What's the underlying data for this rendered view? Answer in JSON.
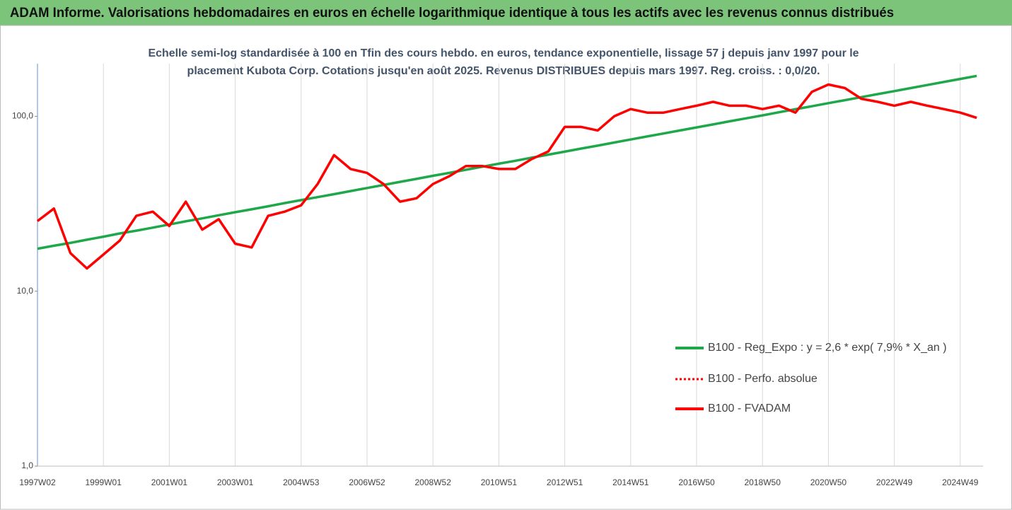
{
  "chart_data": {
    "type": "line",
    "title": "ADAM Informe. Valorisations hebdomadaires en euros en échelle logarithmique identique à tous les actifs avec les revenus connus distribués",
    "subtitle": [
      "Echelle semi-log standardisée à 100 en Tfin des cours hebdo. en euros, tendance exponentielle, lissage 57 j depuis janv 1997 pour le",
      "placement Kubota Corp. Cotations jusqu'en août 2025. Revenus DISTRIBUES depuis mars 1997. Reg. croiss. : 0,0/20."
    ],
    "categories": [
      "1997W02",
      null,
      null,
      null,
      "1999W01",
      null,
      null,
      null,
      "2001W01",
      null,
      null,
      null,
      "2003W01",
      null,
      null,
      null,
      "2004W53",
      null,
      null,
      null,
      "2006W52",
      null,
      null,
      null,
      "2008W52",
      null,
      null,
      null,
      "2010W51",
      null,
      null,
      null,
      "2012W51",
      null,
      null,
      null,
      "2014W51",
      null,
      null,
      null,
      "2016W50",
      null,
      null,
      null,
      "2018W50",
      null,
      null,
      null,
      "2020W50",
      null,
      null,
      null,
      "2022W49",
      null,
      null,
      null,
      "2024W49",
      null
    ],
    "series": [
      {
        "name": "B100 - Reg_Expo : y = 2,6 * exp( 7,9% *  X_an )",
        "color": "#1fa84a",
        "style": "solid",
        "values": [
          17.5,
          18.2,
          18.9,
          19.7,
          20.5,
          21.4,
          22.2,
          23.1,
          24.1,
          25.1,
          26.1,
          27.2,
          28.3,
          29.4,
          30.6,
          31.9,
          33.2,
          34.5,
          35.9,
          37.4,
          38.9,
          40.5,
          42.2,
          43.9,
          45.7,
          47.5,
          49.5,
          51.5,
          53.6,
          55.7,
          58.0,
          60.4,
          62.8,
          65.4,
          68.0,
          70.8,
          73.7,
          76.7,
          79.8,
          83.0,
          86.4,
          89.9,
          93.6,
          97.4,
          101.3,
          105.5,
          109.8,
          114.2,
          118.9,
          123.7,
          128.7,
          134.0,
          139.4,
          145.1,
          151.0,
          157.1,
          163.5,
          170.2
        ]
      },
      {
        "name": "B100 - Perfo. absolue",
        "color": "#ff0000",
        "style": "dotted",
        "values": [
          25.2,
          29.7,
          16.5,
          13.5,
          16.2,
          19.5,
          27,
          28.5,
          23.6,
          32.5,
          22.5,
          25.8,
          18.7,
          17.8,
          27,
          28.5,
          31,
          41,
          60,
          50,
          47.5,
          41,
          32.5,
          34,
          41,
          45.5,
          52,
          52,
          50,
          50,
          57,
          63,
          87,
          87,
          83,
          100,
          110,
          105,
          105,
          110,
          115,
          121,
          115,
          115,
          110,
          115,
          105,
          138,
          152,
          145,
          126,
          121,
          115,
          121,
          115,
          110,
          105,
          98
        ]
      },
      {
        "name": "B100 - FVADAM",
        "color": "#ff0000",
        "style": "solid",
        "values": [
          25.2,
          29.7,
          16.5,
          13.5,
          16.2,
          19.5,
          27,
          28.5,
          23.6,
          32.5,
          22.5,
          25.8,
          18.7,
          17.8,
          27,
          28.5,
          31,
          41,
          60,
          50,
          47.5,
          41,
          32.5,
          34,
          41,
          45.5,
          52,
          52,
          50,
          50,
          57,
          63,
          87,
          87,
          83,
          100,
          110,
          105,
          105,
          110,
          115,
          121,
          115,
          115,
          110,
          115,
          105,
          138,
          152,
          145,
          126,
          121,
          115,
          121,
          115,
          110,
          105,
          98
        ]
      }
    ],
    "log_scale": true,
    "ylim": [
      1,
      200
    ],
    "yticks": [
      {
        "value": 1,
        "label": "1,0"
      },
      {
        "value": 10,
        "label": "10,0"
      },
      {
        "value": 100,
        "label": "100,0"
      }
    ],
    "grid": true,
    "legend": "lower right"
  }
}
